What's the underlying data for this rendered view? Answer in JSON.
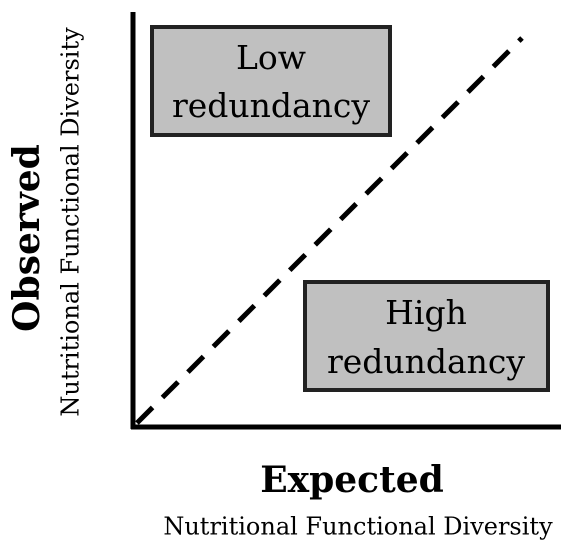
{
  "axes": {
    "x": {
      "title": "Expected",
      "subtitle": "Nutritional Functional Diversity"
    },
    "y": {
      "title": "Observed",
      "subtitle": "Nutritional Functional Diversity"
    }
  },
  "regions": [
    {
      "lines": [
        "Low",
        "redundancy"
      ]
    },
    {
      "lines": [
        "High",
        "redundancy"
      ]
    }
  ]
}
